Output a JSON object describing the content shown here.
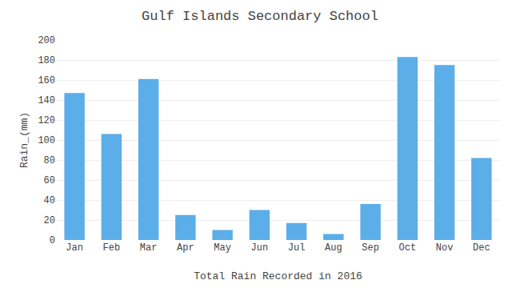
{
  "chart_data": {
    "type": "bar",
    "title": "Gulf Islands Secondary School",
    "xlabel": "Total Rain Recorded in 2016",
    "ylabel": "Rain_(mm)",
    "categories": [
      "Jan",
      "Feb",
      "Mar",
      "Apr",
      "May",
      "Jun",
      "Jul",
      "Aug",
      "Sep",
      "Oct",
      "Nov",
      "Dec"
    ],
    "values": [
      147,
      106,
      161,
      25,
      10,
      30,
      17,
      6,
      36,
      183,
      175,
      82
    ],
    "color": "#5BAEE8",
    "ylim": [
      0,
      200
    ],
    "yticks": [
      0,
      20,
      40,
      60,
      80,
      100,
      120,
      140,
      160,
      180,
      200
    ],
    "grid": true
  }
}
